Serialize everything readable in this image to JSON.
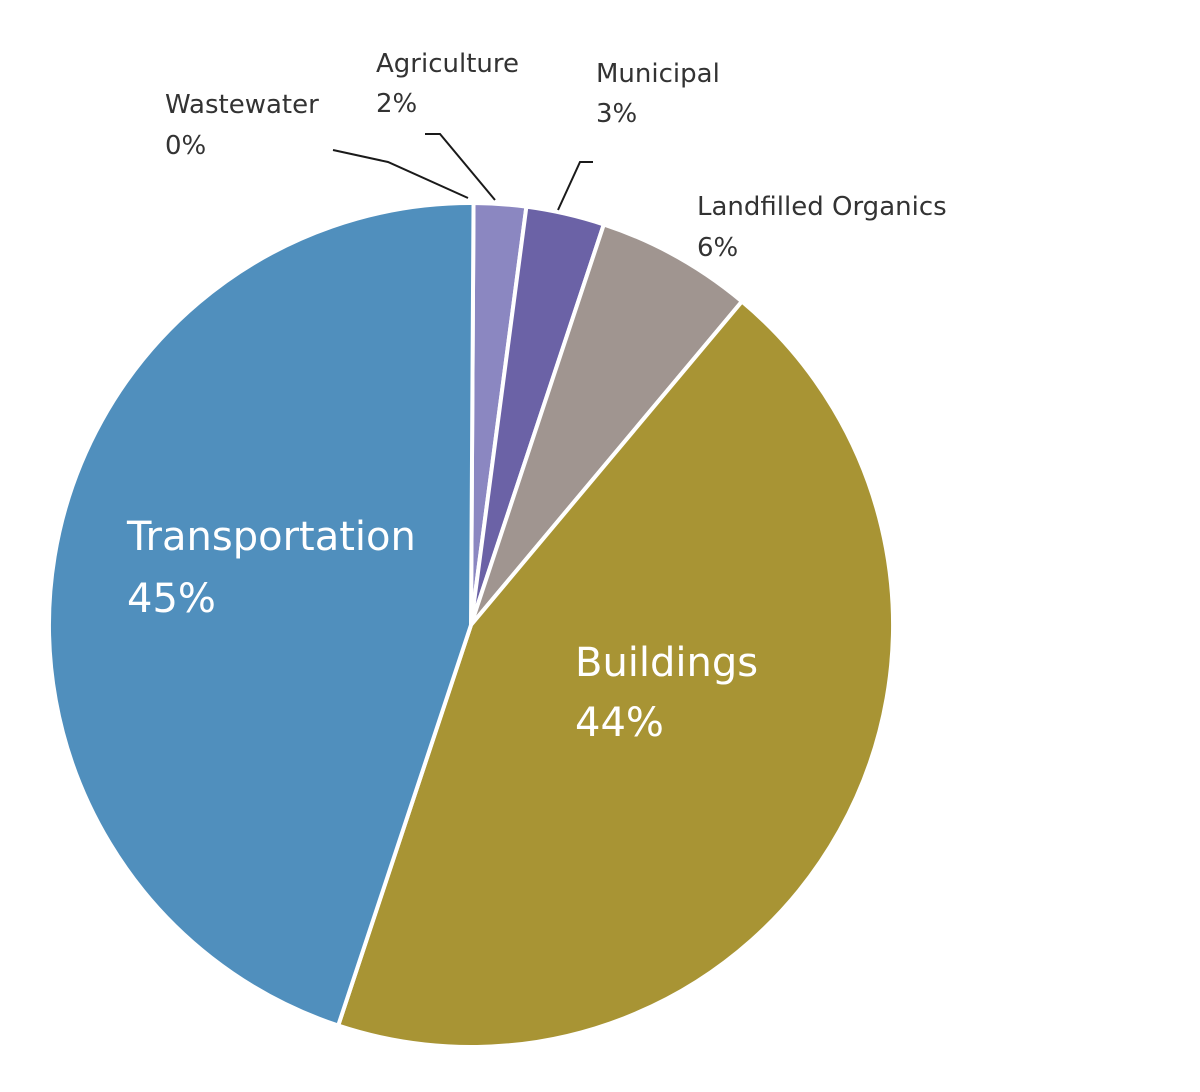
{
  "chart_data": {
    "type": "pie",
    "start_angle": "12 o'clock",
    "direction": "clockwise",
    "slices": [
      {
        "name": "Wastewater",
        "value": 0,
        "display_value": "0%",
        "color": "#8b87c1",
        "label_position": "outside"
      },
      {
        "name": "Agriculture",
        "value": 2,
        "display_value": "2%",
        "color": "#8b87c1",
        "label_position": "outside"
      },
      {
        "name": "Municipal",
        "value": 3,
        "display_value": "3%",
        "color": "#6b62a6",
        "label_position": "outside"
      },
      {
        "name": "Landfilled Organics",
        "value": 6,
        "display_value": "6%",
        "color": "#a09590",
        "label_position": "outside"
      },
      {
        "name": "Buildings",
        "value": 44,
        "display_value": "44%",
        "color": "#a89434",
        "label_position": "inside"
      },
      {
        "name": "Transportation",
        "value": 45,
        "display_value": "45%",
        "color": "#508fbd",
        "label_position": "inside"
      }
    ]
  }
}
